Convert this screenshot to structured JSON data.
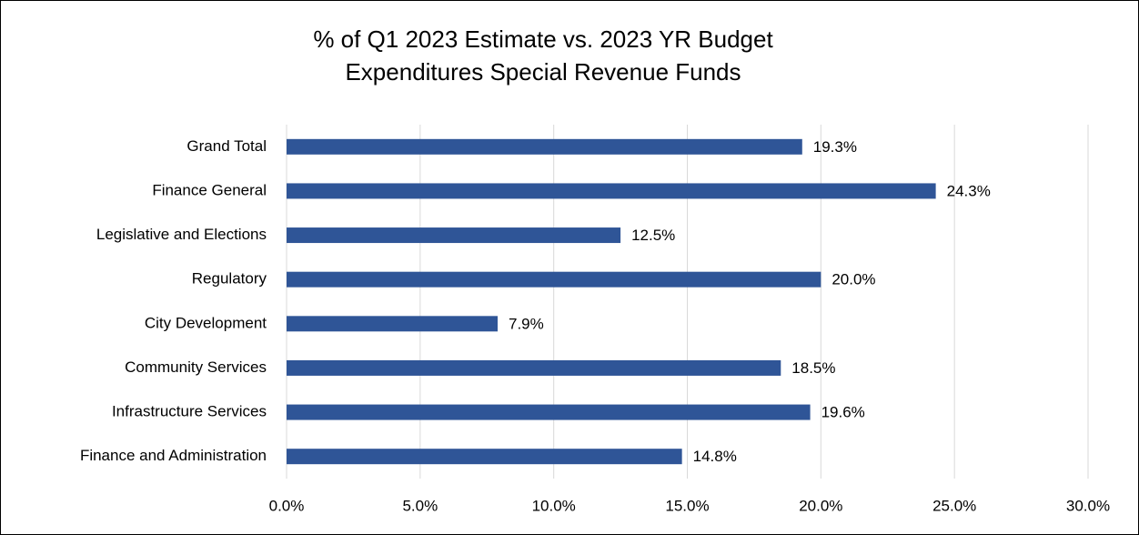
{
  "chart_data": {
    "type": "bar",
    "orientation": "horizontal",
    "title": [
      "% of Q1 2023 Estimate vs. 2023 YR Budget",
      "Expenditures Special Revenue Funds"
    ],
    "categories": [
      "Grand Total",
      "Finance General",
      "Legislative and Elections",
      "Regulatory",
      "City Development",
      "Community Services",
      "Infrastructure Services",
      "Finance and Administration"
    ],
    "values": [
      19.3,
      24.3,
      12.5,
      20.0,
      7.9,
      18.5,
      19.6,
      14.8
    ],
    "value_labels": [
      "19.3%",
      "24.3%",
      "12.5%",
      "20.0%",
      "7.9%",
      "18.5%",
      "19.6%",
      "14.8%"
    ],
    "color": "#2f5597",
    "xlim": [
      0,
      30
    ],
    "xticks": [
      {
        "value": 0,
        "label": "0.0%"
      },
      {
        "value": 5,
        "label": "5.0%"
      },
      {
        "value": 10,
        "label": "10.0%"
      },
      {
        "value": 15,
        "label": "15.0%"
      },
      {
        "value": 20,
        "label": "20.0%"
      },
      {
        "value": 25,
        "label": "25.0%"
      },
      {
        "value": 30,
        "label": "30.0%"
      }
    ],
    "grid": true
  }
}
